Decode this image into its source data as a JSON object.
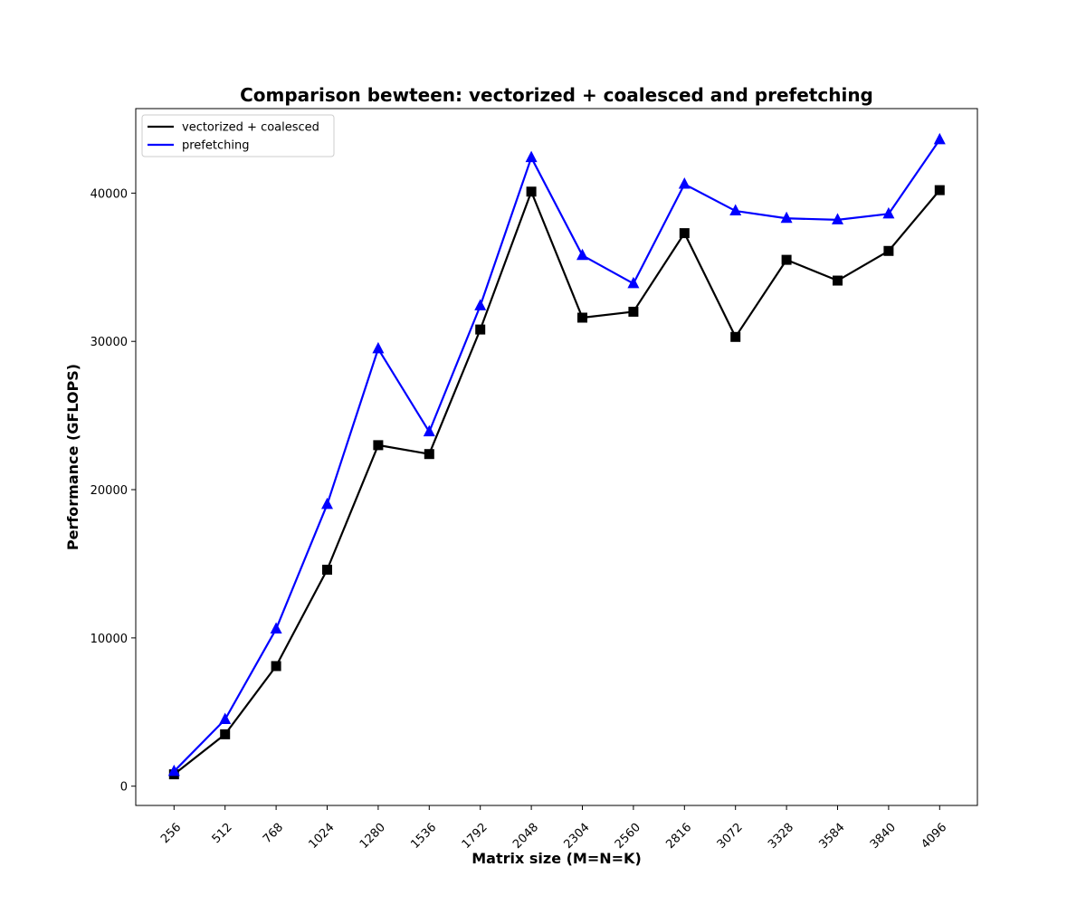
{
  "chart_data": {
    "type": "line",
    "title": "Comparison bewteen: vectorized + coalesced and prefetching",
    "xlabel": "Matrix size (M=N=K)",
    "ylabel": "Performance (GFLOPS)",
    "categories": [
      "256",
      "512",
      "768",
      "1024",
      "1280",
      "1536",
      "1792",
      "2048",
      "2304",
      "2560",
      "2816",
      "3072",
      "3328",
      "3584",
      "3840",
      "4096"
    ],
    "y_ticks": [
      0,
      10000,
      20000,
      30000,
      40000
    ],
    "y_tick_labels": [
      "0",
      "10000",
      "20000",
      "30000",
      "40000"
    ],
    "ylim": [
      -1300,
      45700
    ],
    "grid": false,
    "legend_position": "top-left",
    "series": [
      {
        "name": "vectorized + coalesced",
        "color": "#000000",
        "marker": "square",
        "values": [
          800,
          3500,
          8100,
          14600,
          23000,
          22400,
          30800,
          40100,
          31600,
          32000,
          37300,
          30300,
          35500,
          34100,
          36100,
          40200
        ]
      },
      {
        "name": "prefetching",
        "color": "#0000ff",
        "marker": "triangle",
        "values": [
          1000,
          4500,
          10600,
          19000,
          29500,
          23900,
          32400,
          42400,
          35800,
          33900,
          40600,
          38800,
          38300,
          38200,
          38600,
          43600
        ]
      }
    ]
  }
}
